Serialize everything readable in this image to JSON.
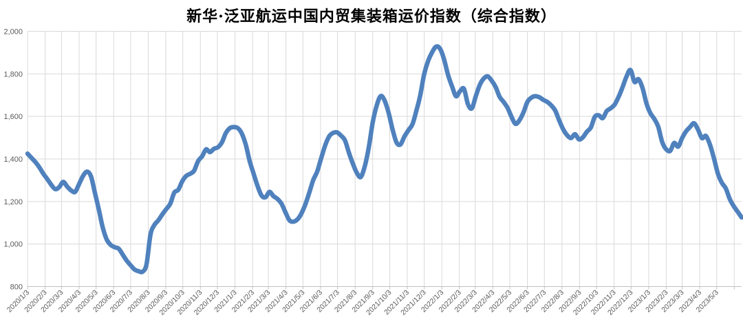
{
  "title": "新华·泛亚航运中国内贸集装箱运价指数（综合指数）",
  "colors": {
    "series_line": "#4F81BD",
    "gridline": "#d9d9d9",
    "axis_line": "#bfbfbf",
    "tick_label": "#595959",
    "title_text": "#000000",
    "background": "#ffffff"
  },
  "chart_data": {
    "type": "line",
    "title": "新华·泛亚航运中国内贸集装箱运价指数（综合指数）",
    "xlabel": "",
    "ylabel": "",
    "ylim": [
      800,
      2000
    ],
    "ytick_step": 200,
    "y_tick_labels": [
      "800",
      "1,000",
      "1,200",
      "1,400",
      "1,600",
      "1,800",
      "2,000"
    ],
    "grid": true,
    "legend_position": "none",
    "x_tick_labels": [
      "2020/1/3",
      "2020/2/3",
      "2020/3/3",
      "2020/4/3",
      "2020/5/3",
      "2020/6/3",
      "2020/7/3",
      "2020/8/3",
      "2020/9/3",
      "2020/10/3",
      "2020/11/3",
      "2020/12/3",
      "2021/1/3",
      "2021/2/3",
      "2021/3/3",
      "2021/4/3",
      "2021/5/3",
      "2021/6/3",
      "2021/7/3",
      "2021/8/3",
      "2021/9/3",
      "2021/10/3",
      "2021/11/3",
      "2021/12/3",
      "2022/1/3",
      "2022/2/3",
      "2022/3/3",
      "2022/4/3",
      "2022/5/3",
      "2022/6/3",
      "2022/7/3",
      "2022/8/3",
      "2022/9/3",
      "2022/10/3",
      "2022/11/3",
      "2022/12/3",
      "2023/1/3",
      "2023/2/3",
      "2023/3/3",
      "2023/4/3",
      "2023/5/3"
    ],
    "series": [
      {
        "name": "综合指数",
        "color": "#4F81BD",
        "frequency": "weekly",
        "start_date": "2020/1/3",
        "values": [
          1425,
          1405,
          1385,
          1360,
          1330,
          1305,
          1278,
          1258,
          1268,
          1292,
          1270,
          1252,
          1245,
          1282,
          1320,
          1340,
          1318,
          1240,
          1160,
          1075,
          1020,
          995,
          985,
          978,
          950,
          922,
          900,
          880,
          872,
          870,
          905,
          1045,
          1090,
          1112,
          1140,
          1165,
          1190,
          1242,
          1255,
          1295,
          1320,
          1330,
          1345,
          1390,
          1412,
          1445,
          1432,
          1448,
          1455,
          1478,
          1522,
          1545,
          1550,
          1545,
          1520,
          1468,
          1390,
          1330,
          1272,
          1228,
          1220,
          1245,
          1225,
          1212,
          1190,
          1150,
          1112,
          1105,
          1115,
          1142,
          1185,
          1240,
          1300,
          1340,
          1402,
          1462,
          1505,
          1522,
          1525,
          1510,
          1488,
          1430,
          1378,
          1335,
          1315,
          1365,
          1452,
          1570,
          1650,
          1695,
          1675,
          1618,
          1540,
          1478,
          1468,
          1505,
          1535,
          1562,
          1625,
          1700,
          1800,
          1862,
          1902,
          1928,
          1918,
          1868,
          1795,
          1742,
          1695,
          1718,
          1730,
          1658,
          1638,
          1695,
          1748,
          1778,
          1788,
          1768,
          1738,
          1692,
          1668,
          1640,
          1598,
          1565,
          1582,
          1618,
          1668,
          1688,
          1695,
          1690,
          1678,
          1668,
          1652,
          1628,
          1582,
          1540,
          1512,
          1498,
          1516,
          1492,
          1502,
          1528,
          1548,
          1598,
          1605,
          1592,
          1625,
          1638,
          1656,
          1692,
          1738,
          1788,
          1818,
          1762,
          1775,
          1735,
          1662,
          1615,
          1588,
          1550,
          1478,
          1445,
          1438,
          1475,
          1458,
          1498,
          1530,
          1550,
          1568,
          1538,
          1498,
          1508,
          1468,
          1405,
          1332,
          1288,
          1262,
          1212,
          1178,
          1152,
          1125
        ]
      }
    ]
  }
}
